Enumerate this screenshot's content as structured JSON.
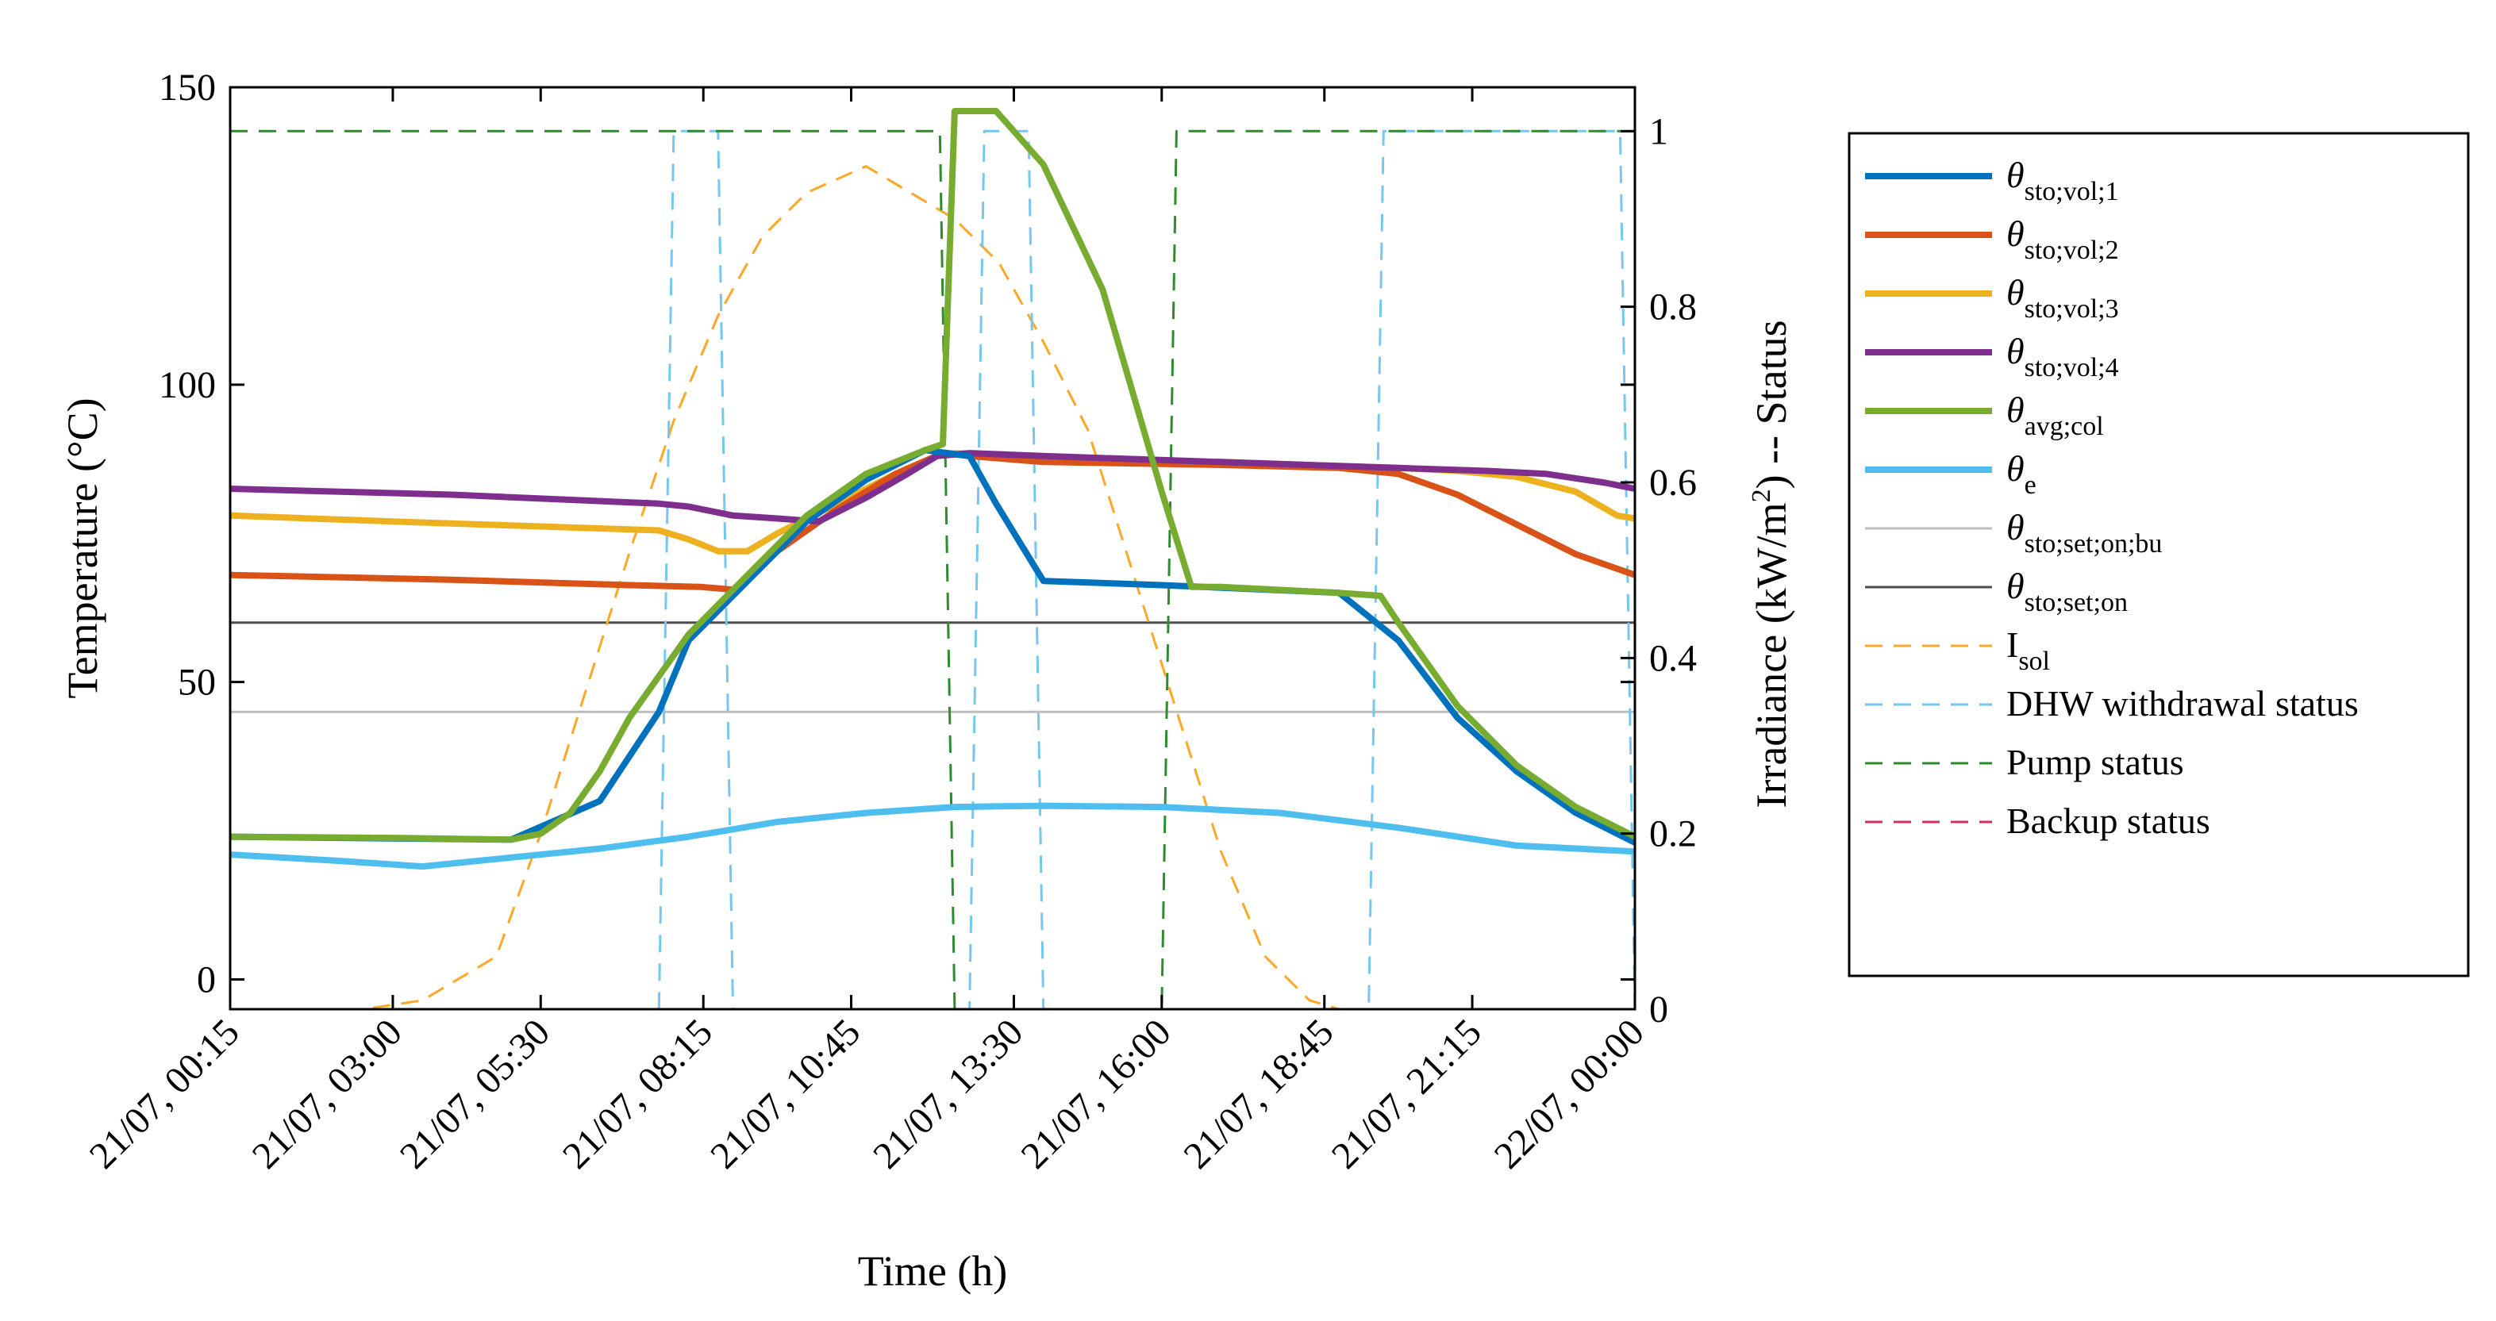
{
  "chart_data": {
    "type": "line",
    "xlabel": "Time (h)",
    "ylabel_left": "Temperature (°C)",
    "ylabel_right_prefix": "Irradiance (kW/m",
    "ylabel_right_sup": "2",
    "ylabel_right_suffix": ") -- Status",
    "x_ticks": [
      "21/07, 00:15",
      "21/07, 03:00",
      "21/07, 05:30",
      "21/07, 08:15",
      "21/07, 10:45",
      "21/07, 13:30",
      "21/07, 16:00",
      "21/07, 18:45",
      "21/07, 21:15",
      "22/07, 00:00"
    ],
    "x_tick_hours": [
      0.25,
      3.0,
      5.5,
      8.25,
      10.75,
      13.5,
      16.0,
      18.75,
      21.25,
      24.0
    ],
    "xlim": [
      0.25,
      24.0
    ],
    "ylim_left": [
      -5,
      150
    ],
    "y_ticks_left": [
      0,
      50,
      100,
      150
    ],
    "ylim_right": [
      0,
      1.05
    ],
    "y_ticks_right": [
      0,
      0.2,
      0.4,
      0.6,
      0.8,
      1
    ],
    "y_tick_labels_right": [
      "0",
      "0.2",
      "0.4",
      "0.6",
      "0.8",
      "1"
    ],
    "series": [
      {
        "name": "θ_sto;vol;1",
        "symbol": "θ",
        "sub": "sto;vol;1",
        "axis": "left",
        "color": "#0072BD",
        "style": "solid",
        "x": [
          0.25,
          3.0,
          5.0,
          6.5,
          7.5,
          8.0,
          9.0,
          10.0,
          11.0,
          12.0,
          12.75,
          13.2,
          14.0,
          16.0,
          19.0,
          20.0,
          21.0,
          22.0,
          23.0,
          24.0
        ],
        "y": [
          24,
          23.7,
          23.5,
          30,
          45,
          57,
          67,
          77,
          84,
          89,
          88,
          80,
          67,
          66.3,
          65,
          57,
          44,
          35,
          28,
          23
        ]
      },
      {
        "name": "θ_sto;vol;2",
        "symbol": "θ",
        "sub": "sto;vol;2",
        "axis": "left",
        "color": "#D95319",
        "style": "solid",
        "x": [
          0.25,
          4.0,
          7.0,
          8.2,
          8.8,
          9.5,
          10.5,
          11.5,
          12.3,
          12.75,
          14.0,
          17.0,
          19.0,
          20.0,
          21.0,
          22.0,
          23.0,
          24.0
        ],
        "y": [
          68,
          67.2,
          66.3,
          66,
          65.5,
          72,
          79,
          85,
          88.5,
          88,
          87,
          86.5,
          86,
          85,
          81.5,
          76.5,
          71.5,
          68
        ]
      },
      {
        "name": "θ_sto;vol;3",
        "symbol": "θ",
        "sub": "sto;vol;3",
        "axis": "left",
        "color": "#EDB120",
        "style": "solid",
        "x": [
          0.25,
          3.0,
          7.5,
          8.0,
          8.5,
          9.0,
          9.5,
          10.5,
          11.5,
          12.3,
          12.75,
          14.0,
          17.0,
          20.0,
          21.0,
          22.0,
          23.0,
          23.7,
          24.0
        ],
        "y": [
          78,
          77,
          75.5,
          74,
          72,
          72,
          75,
          80,
          85,
          88.5,
          88.4,
          87.5,
          87,
          86,
          85.5,
          84.5,
          82,
          78,
          77.5
        ]
      },
      {
        "name": "θ_sto;vol;4",
        "symbol": "θ",
        "sub": "sto;vol;4",
        "axis": "left",
        "color": "#7E2F8E",
        "style": "solid",
        "x": [
          0.25,
          4.0,
          7.5,
          8.0,
          8.75,
          9.5,
          10.2,
          11.0,
          11.7,
          12.2,
          12.75,
          14.0,
          17.0,
          20.0,
          21.5,
          22.5,
          23.5,
          24.0
        ],
        "y": [
          82.5,
          81.5,
          80,
          79.5,
          78,
          77.5,
          77,
          81,
          85,
          88,
          88.5,
          88,
          87,
          86,
          85.5,
          85,
          83.5,
          82.5
        ]
      },
      {
        "name": "θ_avg;col",
        "symbol": "θ",
        "sub": "avg;col",
        "axis": "left",
        "color": "#77AC30",
        "style": "solid",
        "x": [
          0.25,
          3.0,
          5.0,
          5.5,
          6.0,
          6.5,
          7.0,
          7.5,
          8.0,
          9.0,
          10.0,
          11.0,
          12.0,
          12.3,
          12.5,
          13.0,
          13.2,
          14.0,
          15.0,
          16.0,
          16.5,
          17.0,
          18.0,
          19.0,
          19.7,
          20.0,
          21.0,
          22.0,
          23.0,
          24.0
        ],
        "y": [
          24,
          23.8,
          23.5,
          24.5,
          28,
          35,
          44,
          51,
          58,
          68,
          78,
          85,
          89,
          90,
          146,
          146,
          146,
          137,
          116,
          82,
          66,
          66,
          65.5,
          65,
          64.5,
          60,
          46,
          36,
          29,
          24
        ]
      },
      {
        "name": "θ_e",
        "symbol": "θ",
        "sub": "e",
        "axis": "left",
        "color": "#4DBEEE",
        "style": "solid",
        "x": [
          0.25,
          2.0,
          3.5,
          5.0,
          6.5,
          8.0,
          9.5,
          11.0,
          12.5,
          14.0,
          16.0,
          18.0,
          20.0,
          22.0,
          24.0
        ],
        "y": [
          21,
          20,
          19,
          20.5,
          22,
          24,
          26.5,
          28,
          29,
          29.2,
          29,
          28,
          25.5,
          22.5,
          21.5
        ]
      },
      {
        "name": "θ_sto;set;on;bu",
        "symbol": "θ",
        "sub": "sto;set;on;bu",
        "axis": "left",
        "color": "#BDBDBD",
        "style": "solid",
        "x": [
          0.25,
          24.0
        ],
        "y": [
          45,
          45
        ]
      },
      {
        "name": "θ_sto;set;on",
        "symbol": "θ",
        "sub": "sto;set;on",
        "axis": "left",
        "color": "#4D4D4D",
        "style": "solid",
        "x": [
          0.25,
          24.0
        ],
        "y": [
          60,
          60
        ]
      },
      {
        "name": "I_sol",
        "symbol": "I",
        "sub": "sol",
        "axis": "right",
        "color": "#FFA726",
        "style": "dashed",
        "x": [
          0.25,
          2.5,
          3.5,
          4.75,
          5.5,
          6.25,
          7.0,
          7.75,
          8.5,
          9.25,
          10.0,
          11.0,
          11.75,
          12.5,
          13.25,
          14.0,
          14.75,
          15.5,
          16.25,
          17.0,
          17.75,
          18.5,
          19.0,
          20.0,
          24.0
        ],
        "y": [
          0,
          0,
          0.01,
          0.06,
          0.2,
          0.36,
          0.52,
          0.67,
          0.79,
          0.88,
          0.93,
          0.96,
          0.93,
          0.9,
          0.85,
          0.76,
          0.66,
          0.5,
          0.34,
          0.18,
          0.06,
          0.01,
          0,
          0,
          0
        ]
      },
      {
        "name": "DHW withdrawal status",
        "symbol": "",
        "sub": "",
        "axis": "right",
        "color": "#76C7F0",
        "style": "dashed",
        "x": [
          0.25,
          7.5,
          7.75,
          8.5,
          8.75,
          12.75,
          13.0,
          13.75,
          14.0,
          19.5,
          19.75,
          23.75,
          24.0
        ],
        "y": [
          0,
          0,
          1,
          1,
          0,
          0,
          1,
          1,
          0,
          0,
          1,
          1,
          0
        ]
      },
      {
        "name": "Pump status",
        "symbol": "",
        "sub": "",
        "axis": "right",
        "color": "#2E8B2E",
        "style": "dashed",
        "x": [
          0.25,
          12.25,
          12.5,
          16.0,
          16.25,
          24.0
        ],
        "y": [
          1,
          1,
          0,
          0,
          1,
          1
        ]
      },
      {
        "name": "Backup status",
        "symbol": "",
        "sub": "",
        "axis": "right",
        "color": "#D62E5C",
        "style": "dashed",
        "x": [
          0.25,
          24.0
        ],
        "y": [
          0,
          0
        ]
      }
    ]
  }
}
